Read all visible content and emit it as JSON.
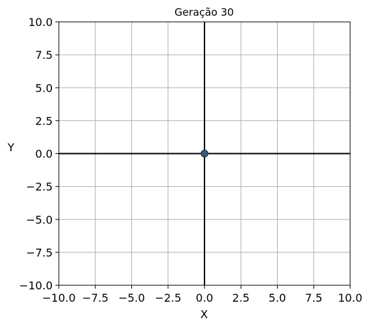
{
  "chart_data": {
    "type": "scatter",
    "title": "Geração 30",
    "xlabel": "X",
    "ylabel": "Y",
    "xlim": [
      -10,
      10
    ],
    "ylim": [
      -10,
      10
    ],
    "xticks": [
      -10,
      -7.5,
      -5,
      -2.5,
      0,
      2.5,
      5,
      7.5,
      10
    ],
    "yticks": [
      -10,
      -7.5,
      -5,
      -2.5,
      0,
      2.5,
      5,
      7.5,
      10
    ],
    "xtick_labels": [
      "−10.0",
      "−7.5",
      "−5.0",
      "−2.5",
      "0.0",
      "2.5",
      "5.0",
      "7.5",
      "10.0"
    ],
    "ytick_labels": [
      "−10.0",
      "−7.5",
      "−5.0",
      "−2.5",
      "0.0",
      "2.5",
      "5.0",
      "7.5",
      "10.0"
    ],
    "grid": true,
    "zero_lines": true,
    "points": [
      {
        "x": 0.0,
        "y": 0.0
      }
    ],
    "colors": {
      "point_fill": "#3b5a7a",
      "point_edge": "#1f2f44",
      "grid": "#b0b0b0",
      "zero_line": "#000000",
      "frame": "#000000"
    }
  }
}
